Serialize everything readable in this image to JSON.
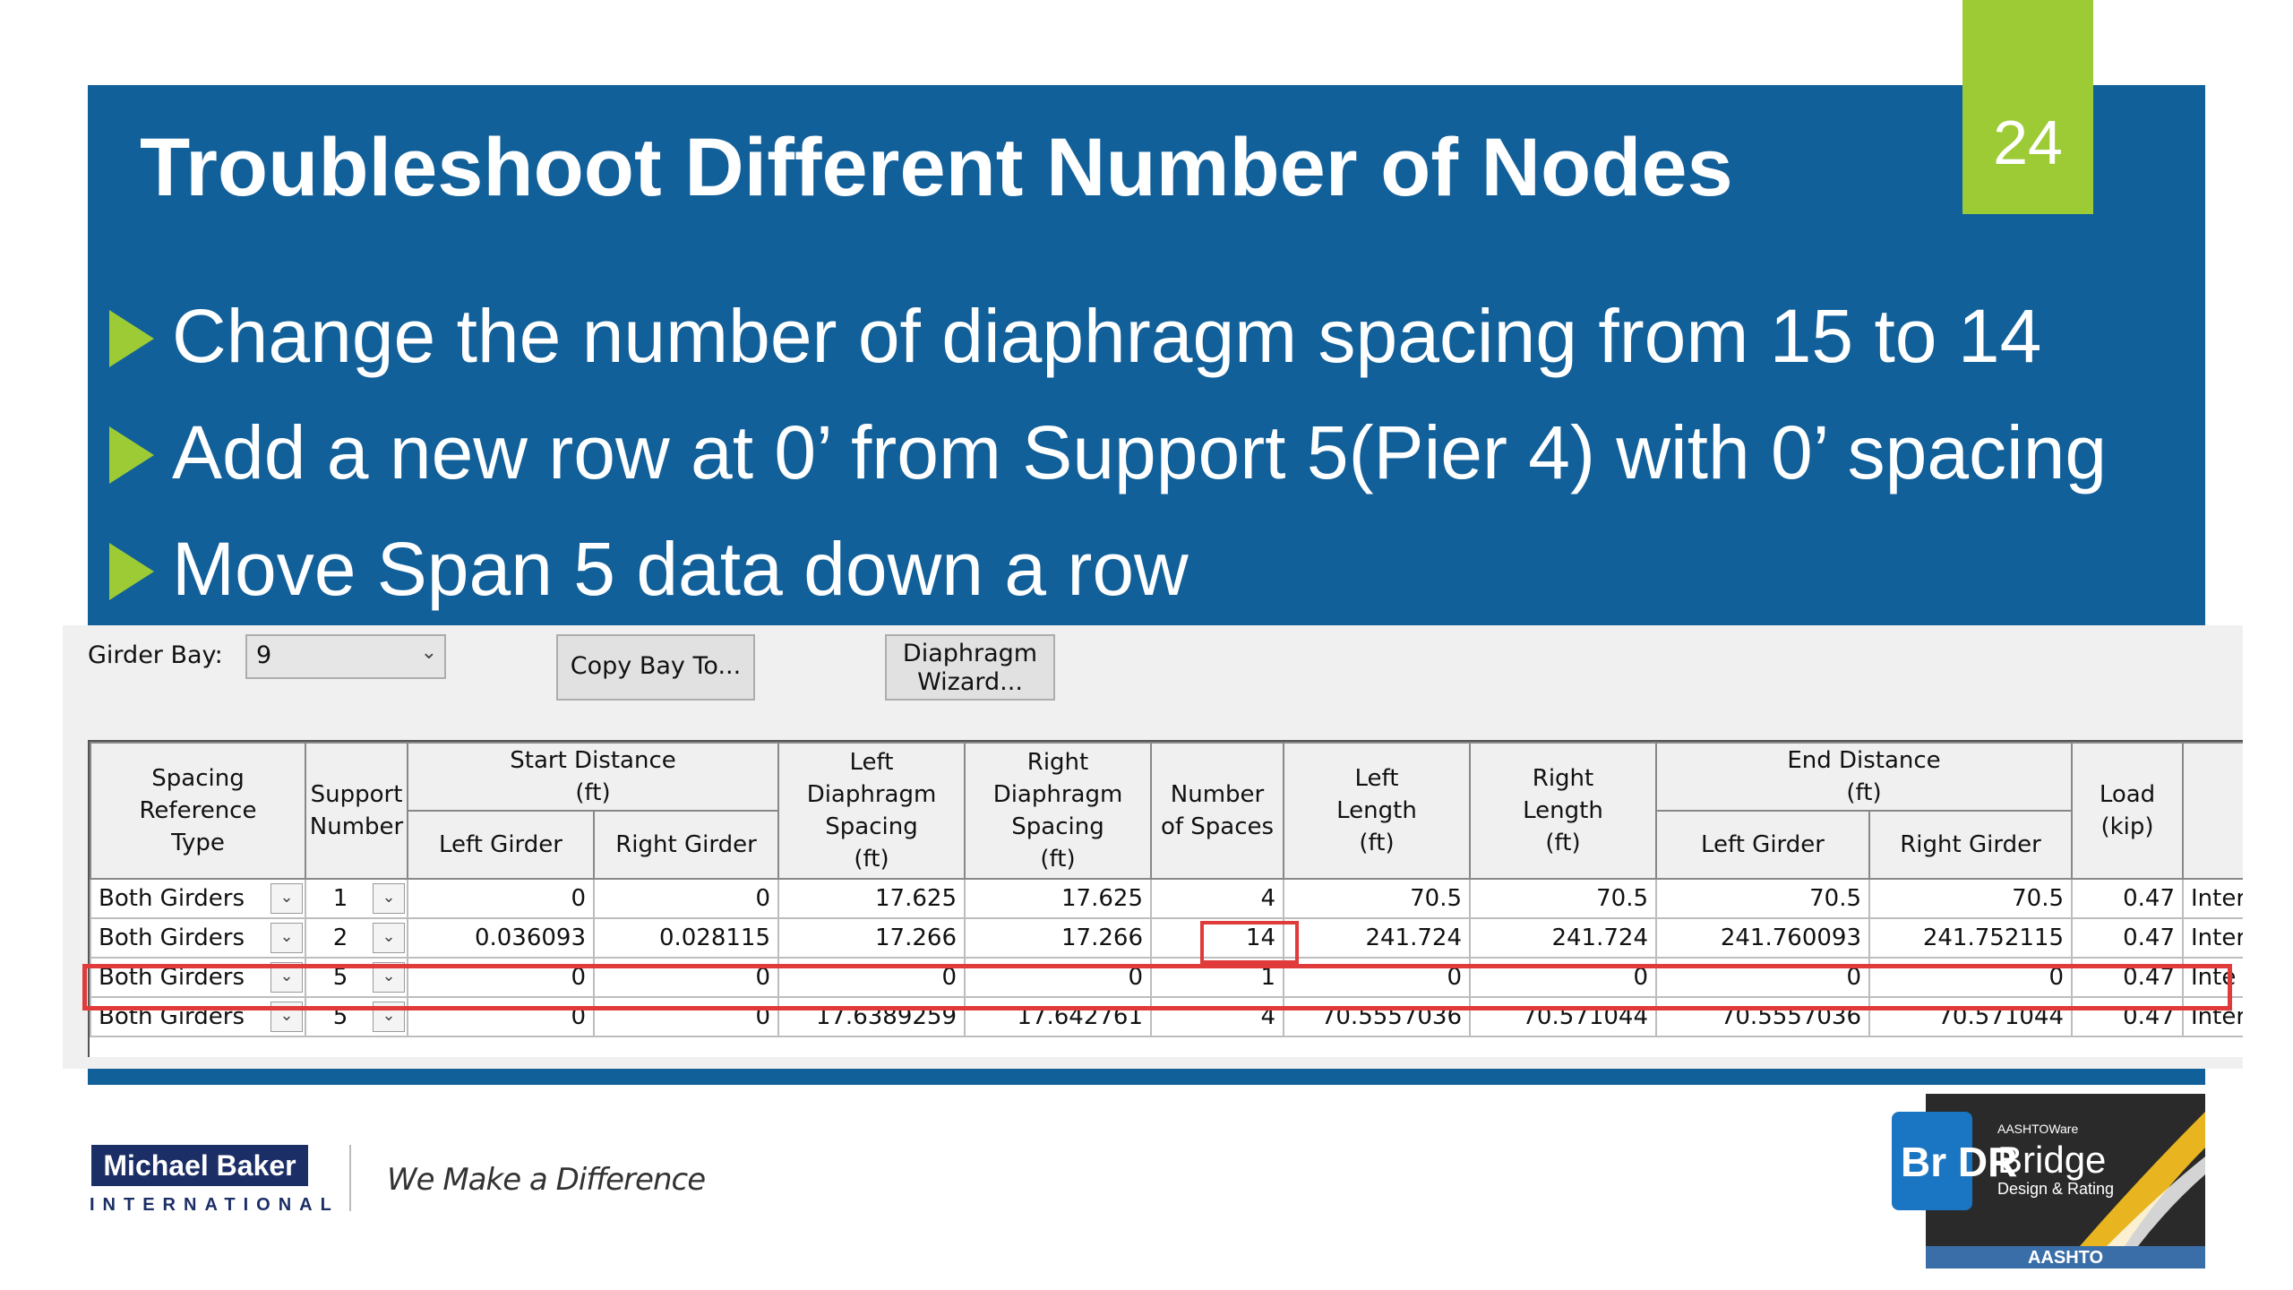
{
  "slide": {
    "title": "Troubleshoot Different Number of Nodes",
    "page_number": "24",
    "bullets": [
      "Change the number of diaphragm spacing from 15 to 14",
      "Add a new row at 0’ from Support 5(Pier 4) with 0’ spacing",
      "Move Span 5 data down a row"
    ]
  },
  "dialog": {
    "girder_bay_label": "Girder Bay:",
    "girder_bay_value": "9",
    "copy_bay_button": "Copy Bay To...",
    "wizard_button_line1": "Diaphragm",
    "wizard_button_line2": "Wizard...",
    "headers": {
      "spacing_ref_type": [
        "Spacing",
        "Reference",
        "Type"
      ],
      "support_number": [
        "Support",
        "Number"
      ],
      "start_distance": [
        "Start Distance",
        "(ft)"
      ],
      "left_girder": "Left Girder",
      "right_girder": "Right Girder",
      "left_diaphragm_spacing": [
        "Left",
        "Diaphragm",
        "Spacing",
        "(ft)"
      ],
      "right_diaphragm_spacing": [
        "Right",
        "Diaphragm",
        "Spacing",
        "(ft)"
      ],
      "number_of_spaces": [
        "Number",
        "of Spaces"
      ],
      "left_length": [
        "Left",
        "Length",
        "(ft)"
      ],
      "right_length": [
        "Right",
        "Length",
        "(ft)"
      ],
      "end_distance": [
        "End Distance",
        "(ft)"
      ],
      "load": [
        "Load",
        "(kip)"
      ]
    },
    "rows": [
      {
        "type": "Both Girders",
        "support": "1",
        "sd_left": "0",
        "sd_right": "0",
        "ld_spacing": "17.625",
        "rd_spacing": "17.625",
        "num_spaces": "4",
        "left_len": "70.5",
        "right_len": "70.5",
        "ed_left": "70.5",
        "ed_right": "70.5",
        "load": "0.47",
        "extra": "Inter"
      },
      {
        "type": "Both Girders",
        "support": "2",
        "sd_left": "0.036093",
        "sd_right": "0.028115",
        "ld_spacing": "17.266",
        "rd_spacing": "17.266",
        "num_spaces": "14",
        "left_len": "241.724",
        "right_len": "241.724",
        "ed_left": "241.760093",
        "ed_right": "241.752115",
        "load": "0.47",
        "extra": "Inter"
      },
      {
        "type": "Both Girders",
        "support": "5",
        "sd_left": "0",
        "sd_right": "0",
        "ld_spacing": "0",
        "rd_spacing": "0",
        "num_spaces": "1",
        "left_len": "0",
        "right_len": "0",
        "ed_left": "0",
        "ed_right": "0",
        "load": "0.47",
        "extra": "Inte"
      },
      {
        "type": "Both Girders",
        "support": "5",
        "sd_left": "0",
        "sd_right": "0",
        "ld_spacing": "17.6389259",
        "rd_spacing": "17.642761",
        "num_spaces": "4",
        "left_len": "70.5557036",
        "right_len": "70.571044",
        "ed_left": "70.5557036",
        "ed_right": "70.571044",
        "load": "0.47",
        "extra": "Inter"
      }
    ]
  },
  "footer": {
    "company_name": "Michael Baker",
    "company_sub": "INTERNATIONAL",
    "tagline": "We Make a Difference",
    "brdr_logo_text": "Br DR",
    "brdr_aashtoware": "AASHTOWare",
    "brdr_product": "Bridge",
    "brdr_product_sub": "Design & Rating",
    "brdr_aashto": "AASHTO"
  },
  "colors": {
    "band": "#11609a",
    "accent": "#9dcb35",
    "highlight": "#e03a3a",
    "logo_navy": "#1c2e66"
  }
}
